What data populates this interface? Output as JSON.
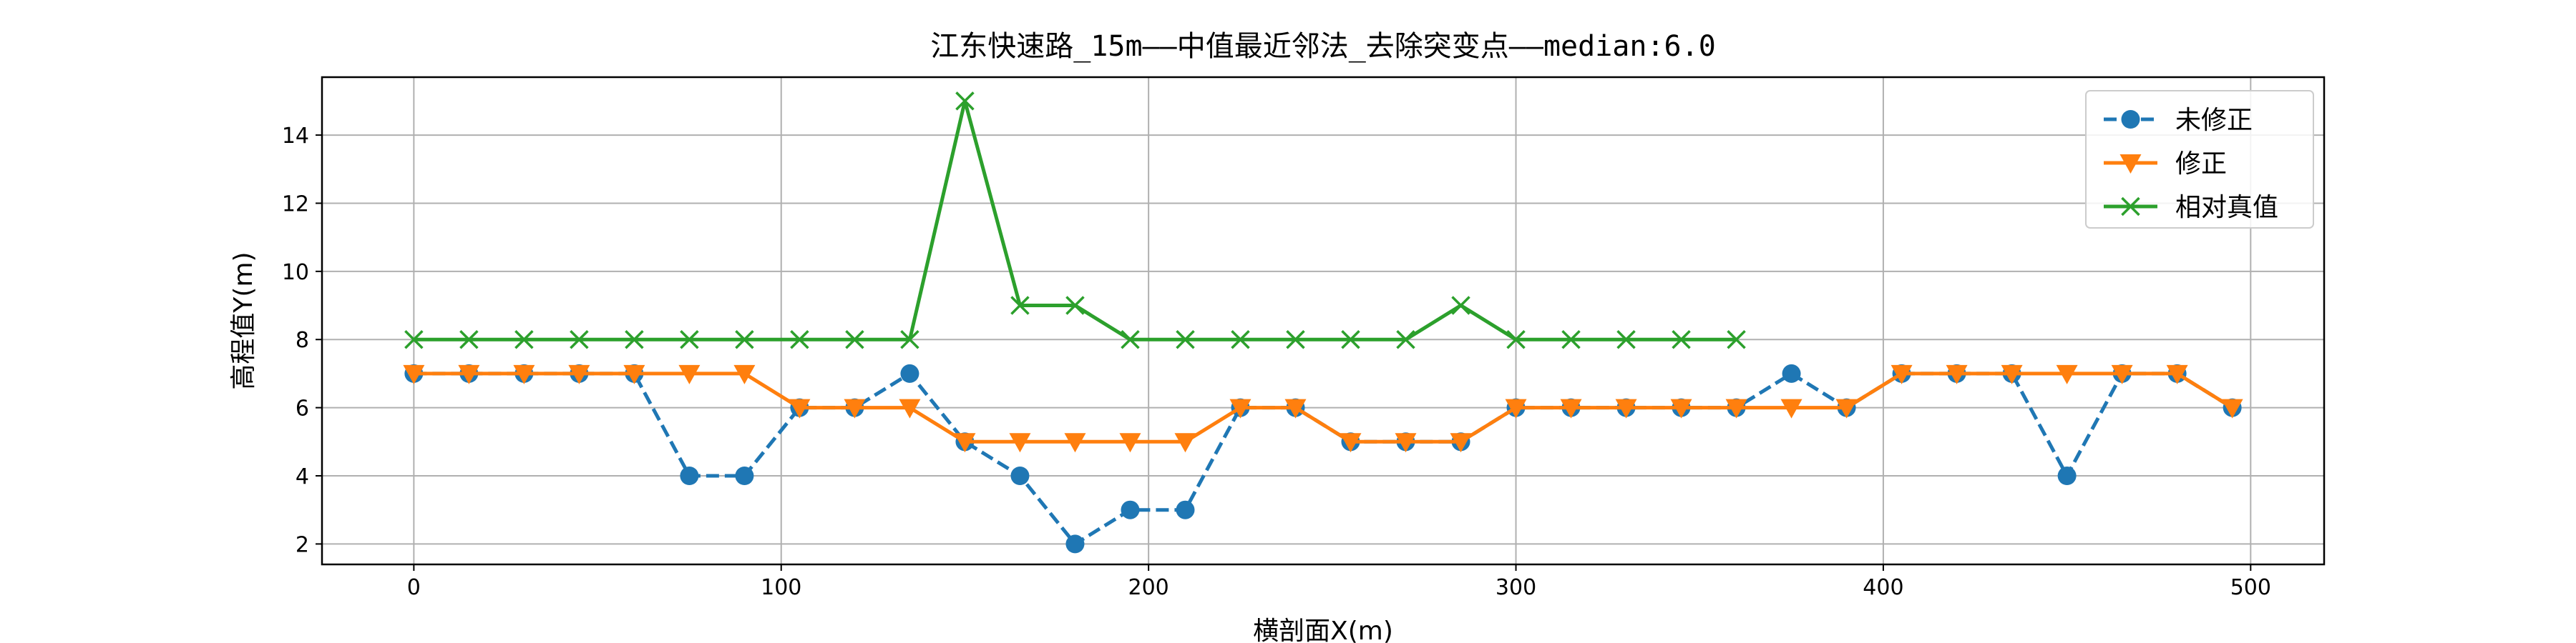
{
  "chart_data": {
    "type": "line",
    "title": "江东快速路_15m——中值最近邻法_去除突变点——median:6.0",
    "xlabel": "横剖面X(m)",
    "ylabel": "高程值Y(m)",
    "xlim": [
      -25,
      520
    ],
    "ylim": [
      1.4,
      15.7
    ],
    "xticks": [
      0,
      100,
      200,
      300,
      400,
      500
    ],
    "yticks": [
      2,
      4,
      6,
      8,
      10,
      12,
      14
    ],
    "grid": true,
    "legend_position": "top-right",
    "series": [
      {
        "name": "未修正",
        "color": "#1f77b4",
        "linestyle": "dashed",
        "marker": "circle",
        "x": [
          0,
          15,
          30,
          45,
          60,
          75,
          90,
          105,
          120,
          135,
          150,
          165,
          180,
          195,
          210,
          225,
          240,
          255,
          270,
          285,
          300,
          315,
          330,
          345,
          360,
          375,
          390,
          405,
          420,
          435,
          450,
          465,
          480,
          495
        ],
        "y": [
          7,
          7,
          7,
          7,
          7,
          4,
          4,
          6,
          6,
          7,
          5,
          4,
          2,
          3,
          3,
          6,
          6,
          5,
          5,
          5,
          6,
          6,
          6,
          6,
          6,
          7,
          6,
          7,
          7,
          7,
          4,
          7,
          7,
          6
        ]
      },
      {
        "name": "修正",
        "color": "#ff7f0e",
        "linestyle": "solid",
        "marker": "triangle-down",
        "x": [
          0,
          15,
          30,
          45,
          60,
          75,
          90,
          105,
          120,
          135,
          150,
          165,
          180,
          195,
          210,
          225,
          240,
          255,
          270,
          285,
          300,
          315,
          330,
          345,
          360,
          375,
          390,
          405,
          420,
          435,
          450,
          465,
          480,
          495
        ],
        "y": [
          7,
          7,
          7,
          7,
          7,
          7,
          7,
          6,
          6,
          6,
          5,
          5,
          5,
          5,
          5,
          6,
          6,
          5,
          5,
          5,
          6,
          6,
          6,
          6,
          6,
          6,
          6,
          7,
          7,
          7,
          7,
          7,
          7,
          6
        ]
      },
      {
        "name": "相对真值",
        "color": "#2ca02c",
        "linestyle": "solid",
        "marker": "x",
        "x": [
          0,
          15,
          30,
          45,
          60,
          75,
          90,
          105,
          120,
          135,
          150,
          165,
          180,
          195,
          210,
          225,
          240,
          255,
          270,
          285,
          300,
          315,
          330,
          345,
          360
        ],
        "y": [
          8,
          8,
          8,
          8,
          8,
          8,
          8,
          8,
          8,
          8,
          15,
          9,
          9,
          8,
          8,
          8,
          8,
          8,
          8,
          9,
          8,
          8,
          8,
          8,
          8
        ]
      }
    ]
  }
}
